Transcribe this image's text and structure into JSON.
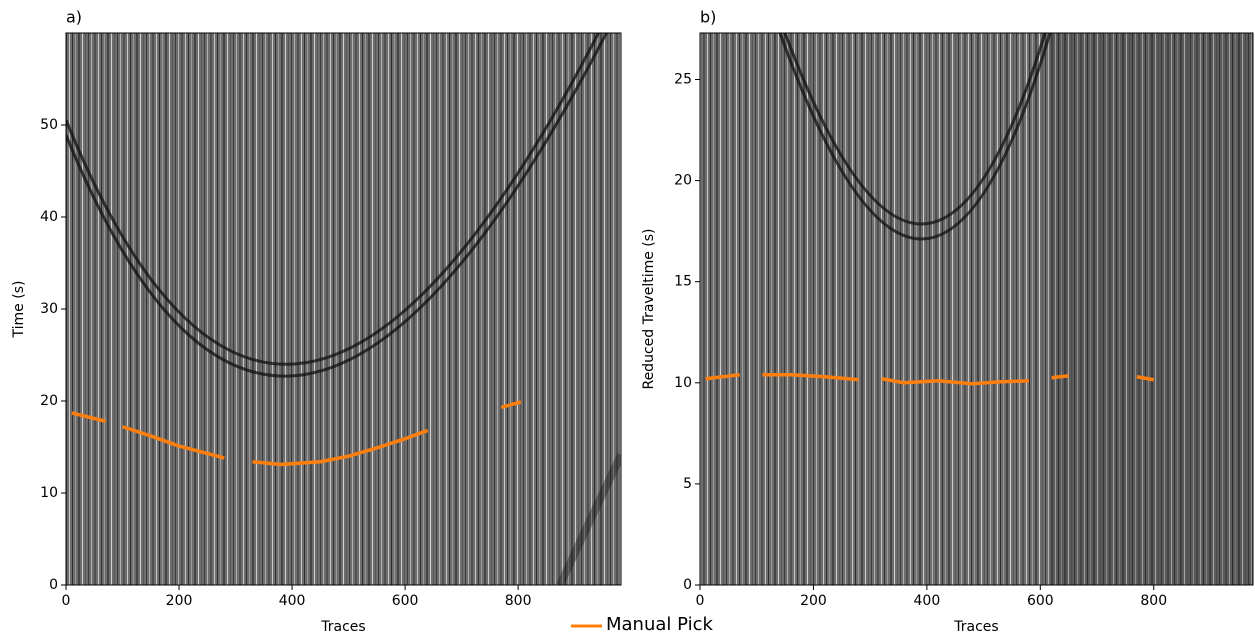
{
  "chart_data": [
    {
      "type": "line",
      "title": "a)",
      "x_label": "Traces",
      "y_label": "Time (s)",
      "xlim": [
        0,
        982
      ],
      "ylim": [
        0,
        60
      ],
      "xticks": [
        0,
        200,
        400,
        600,
        800
      ],
      "yticks": [
        0,
        10,
        20,
        30,
        40,
        50
      ],
      "series": [
        {
          "name": "Manual Pick",
          "color": "#ff7f0e",
          "x": [
            10,
            70,
            85,
            100,
            150,
            200,
            250,
            280,
            300,
            330,
            380,
            450,
            500,
            550,
            600,
            640,
            700,
            770,
            805
          ],
          "values": [
            18.7,
            17.8,
            null,
            17.2,
            16.2,
            15.1,
            14.3,
            13.8,
            null,
            13.4,
            13.1,
            13.4,
            14.0,
            14.9,
            15.9,
            16.8,
            null,
            19.3,
            19.9
          ]
        }
      ]
    },
    {
      "type": "line",
      "title": "b)",
      "x_label": "Traces",
      "y_label": "Reduced Traveltime (s)",
      "xlim": [
        0,
        975
      ],
      "ylim": [
        0,
        27.3
      ],
      "xticks": [
        0,
        200,
        400,
        600,
        800
      ],
      "yticks": [
        0,
        5,
        10,
        15,
        20,
        25
      ],
      "series": [
        {
          "color": "#ff7f0e",
          "x": [
            10,
            70,
            90,
            110,
            160,
            220,
            280,
            300,
            320,
            360,
            420,
            480,
            530,
            580,
            600,
            620,
            650,
            700,
            770,
            800
          ],
          "values": [
            10.2,
            10.4,
            null,
            10.4,
            10.4,
            10.3,
            10.15,
            null,
            10.2,
            10.0,
            10.1,
            9.95,
            10.05,
            10.1,
            null,
            10.25,
            10.35,
            null,
            10.3,
            10.15
          ]
        }
      ]
    }
  ]
}
